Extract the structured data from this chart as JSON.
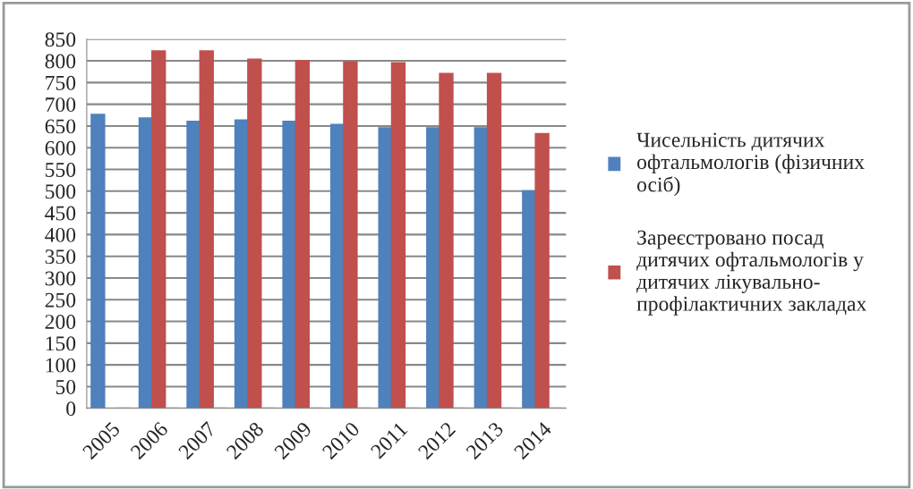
{
  "chart_data": {
    "type": "bar",
    "categories": [
      "2005",
      "2006",
      "2007",
      "2008",
      "2009",
      "2010",
      "2011",
      "2012",
      "2013",
      "2014"
    ],
    "series": [
      {
        "name": "Чисельність дитячих офтальмологів (фізичних осіб)",
        "color": "#4f81bd",
        "values": [
          676,
          668,
          660,
          663,
          660,
          653,
          645,
          645,
          645,
          500
        ]
      },
      {
        "name": "Зареєстровано посад дитячих офтальмологів у дитячих лікувально-профілактичних закладах",
        "color": "#c0504d",
        "values": [
          null,
          822,
          822,
          803,
          800,
          797,
          795,
          770,
          770,
          632
        ]
      },
      {
        "color": "#9bbb59",
        "values": [
          0,
          0,
          0,
          0,
          0,
          0,
          0,
          0,
          0,
          0
        ]
      }
    ],
    "ylim": [
      0,
      850
    ],
    "yticks": [
      0,
      50,
      100,
      150,
      200,
      250,
      300,
      350,
      400,
      450,
      500,
      550,
      600,
      650,
      700,
      750,
      800,
      850
    ],
    "grid": "y",
    "legend": "right"
  }
}
